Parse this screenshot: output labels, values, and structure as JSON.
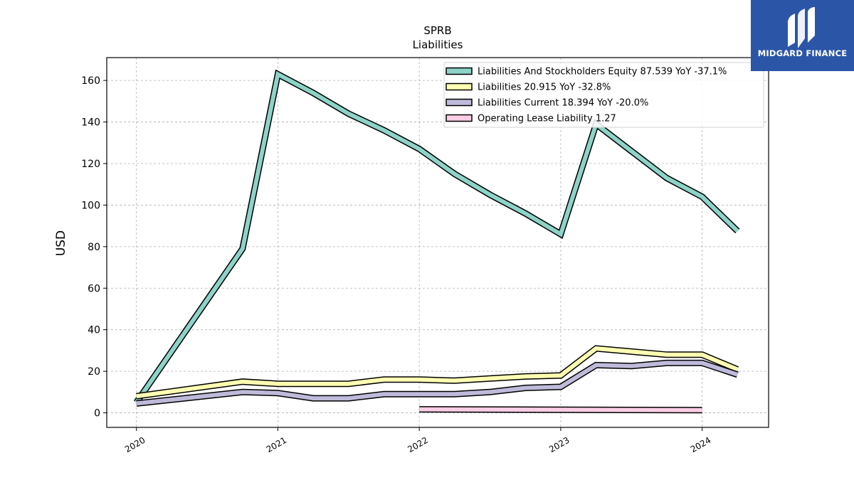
{
  "brand": {
    "name": "MIDGARD FINANCE",
    "logo_icon": "midgard-m-logo-icon",
    "color": "#2b56a8"
  },
  "chart_data": {
    "type": "line",
    "title": "SPRB",
    "subtitle": "Liabilities",
    "xlabel": "",
    "ylabel": "USD",
    "xlim": [
      2019.79,
      2024.47
    ],
    "ylim": [
      -7,
      171
    ],
    "x_ticks": [
      2020,
      2021,
      2022,
      2023,
      2024
    ],
    "x_tick_labels": [
      "2020",
      "2021",
      "2022",
      "2023",
      "2024"
    ],
    "y_ticks": [
      0,
      20,
      40,
      60,
      80,
      100,
      120,
      140,
      160
    ],
    "y_tick_labels": [
      "0",
      "20",
      "40",
      "60",
      "80",
      "100",
      "120",
      "140",
      "160"
    ],
    "grid": true,
    "legend_position": "top-right",
    "series": [
      {
        "name": "Liabilities And Stockholders Equity",
        "legend": "Liabilities And Stockholders Equity  87.539 YoY -37.1%",
        "color": "#8dd3c7",
        "x": [
          2020.0,
          2020.75,
          2021.0,
          2021.25,
          2021.5,
          2021.75,
          2022.0,
          2022.25,
          2022.5,
          2022.75,
          2023.0,
          2023.25,
          2023.5,
          2023.75,
          2024.0,
          2024.25
        ],
        "y": [
          5,
          79,
          163,
          154,
          144,
          136,
          127,
          115,
          105,
          96,
          86,
          139,
          126,
          113,
          104,
          87.5
        ]
      },
      {
        "name": "Liabilities",
        "legend": "Liabilities  20.915 YoY -32.8%",
        "color": "#ffffb3",
        "x": [
          2020.0,
          2020.75,
          2021.0,
          2021.25,
          2021.5,
          2021.75,
          2022.0,
          2022.25,
          2022.5,
          2022.75,
          2023.0,
          2023.25,
          2023.5,
          2023.75,
          2024.0,
          2024.25
        ],
        "y": [
          8,
          15,
          14,
          14,
          14,
          16,
          16,
          15.5,
          16.5,
          17.5,
          18,
          31,
          29.5,
          28,
          28,
          20.9
        ]
      },
      {
        "name": "Liabilities Current",
        "legend": "Liabilities Current  18.394 YoY -20.0%",
        "color": "#bebada",
        "x": [
          2020.0,
          2020.75,
          2021.0,
          2021.25,
          2021.5,
          2021.75,
          2022.0,
          2022.25,
          2022.5,
          2022.75,
          2023.0,
          2023.25,
          2023.5,
          2023.75,
          2024.0,
          2024.25
        ],
        "y": [
          4.5,
          10,
          9.5,
          7,
          7,
          9,
          9,
          9,
          10,
          12,
          12.5,
          23,
          22.5,
          24,
          24,
          18.4
        ]
      },
      {
        "name": "Operating Lease Liability",
        "legend": "Operating Lease Liability  1.27",
        "color": "#fccde5",
        "x": [
          2022.0,
          2024.0
        ],
        "y": [
          1.7,
          1.27
        ]
      }
    ]
  }
}
